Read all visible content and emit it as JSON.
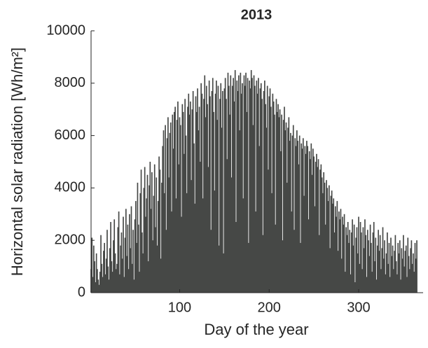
{
  "chart_data": {
    "type": "bar",
    "title": "2013",
    "xlabel": "Day of the year",
    "ylabel": "Horizontal solar radiation [Wh/m²]",
    "color": "#464846",
    "xlim": [
      1,
      372
    ],
    "ylim": [
      0,
      10000
    ],
    "xticks": [
      100,
      200,
      300
    ],
    "yticks": [
      0,
      2000,
      4000,
      6000,
      8000,
      10000
    ],
    "x": [
      1,
      2,
      3,
      4,
      5,
      6,
      7,
      8,
      9,
      10,
      11,
      12,
      13,
      14,
      15,
      16,
      17,
      18,
      19,
      20,
      21,
      22,
      23,
      24,
      25,
      26,
      27,
      28,
      29,
      30,
      31,
      32,
      33,
      34,
      35,
      36,
      37,
      38,
      39,
      40,
      41,
      42,
      43,
      44,
      45,
      46,
      47,
      48,
      49,
      50,
      51,
      52,
      53,
      54,
      55,
      56,
      57,
      58,
      59,
      60,
      61,
      62,
      63,
      64,
      65,
      66,
      67,
      68,
      69,
      70,
      71,
      72,
      73,
      74,
      75,
      76,
      77,
      78,
      79,
      80,
      81,
      82,
      83,
      84,
      85,
      86,
      87,
      88,
      89,
      90,
      91,
      92,
      93,
      94,
      95,
      96,
      97,
      98,
      99,
      100,
      101,
      102,
      103,
      104,
      105,
      106,
      107,
      108,
      109,
      110,
      111,
      112,
      113,
      114,
      115,
      116,
      117,
      118,
      119,
      120,
      121,
      122,
      123,
      124,
      125,
      126,
      127,
      128,
      129,
      130,
      131,
      132,
      133,
      134,
      135,
      136,
      137,
      138,
      139,
      140,
      141,
      142,
      143,
      144,
      145,
      146,
      147,
      148,
      149,
      150,
      151,
      152,
      153,
      154,
      155,
      156,
      157,
      158,
      159,
      160,
      161,
      162,
      163,
      164,
      165,
      166,
      167,
      168,
      169,
      170,
      171,
      172,
      173,
      174,
      175,
      176,
      177,
      178,
      179,
      180,
      181,
      182,
      183,
      184,
      185,
      186,
      187,
      188,
      189,
      190,
      191,
      192,
      193,
      194,
      195,
      196,
      197,
      198,
      199,
      200,
      201,
      202,
      203,
      204,
      205,
      206,
      207,
      208,
      209,
      210,
      211,
      212,
      213,
      214,
      215,
      216,
      217,
      218,
      219,
      220,
      221,
      222,
      223,
      224,
      225,
      226,
      227,
      228,
      229,
      230,
      231,
      232,
      233,
      234,
      235,
      236,
      237,
      238,
      239,
      240,
      241,
      242,
      243,
      244,
      245,
      246,
      247,
      248,
      249,
      250,
      251,
      252,
      253,
      254,
      255,
      256,
      257,
      258,
      259,
      260,
      261,
      262,
      263,
      264,
      265,
      266,
      267,
      268,
      269,
      270,
      271,
      272,
      273,
      274,
      275,
      276,
      277,
      278,
      279,
      280,
      281,
      282,
      283,
      284,
      285,
      286,
      287,
      288,
      289,
      290,
      291,
      292,
      293,
      294,
      295,
      296,
      297,
      298,
      299,
      300,
      301,
      302,
      303,
      304,
      305,
      306,
      307,
      308,
      309,
      310,
      311,
      312,
      313,
      314,
      315,
      316,
      317,
      318,
      319,
      320,
      321,
      322,
      323,
      324,
      325,
      326,
      327,
      328,
      329,
      330,
      331,
      332,
      333,
      334,
      335,
      336,
      337,
      338,
      339,
      340,
      341,
      342,
      343,
      344,
      345,
      346,
      347,
      348,
      349,
      350,
      351,
      352,
      353,
      354,
      355,
      356,
      357,
      358,
      359,
      360,
      361,
      362,
      363,
      364,
      365
    ],
    "values": [
      900,
      2100,
      600,
      1800,
      1200,
      400,
      1500,
      900,
      500,
      300,
      800,
      2200,
      1100,
      600,
      1600,
      1900,
      700,
      1300,
      2400,
      1000,
      500,
      1700,
      2700,
      1200,
      800,
      2000,
      2800,
      1500,
      900,
      1100,
      2500,
      3100,
      700,
      1800,
      2300,
      1300,
      2900,
      600,
      2100,
      3200,
      1400,
      2600,
      900,
      3000,
      1700,
      3300,
      1100,
      2400,
      500,
      2800,
      3500,
      1900,
      4200,
      2600,
      800,
      3800,
      4700,
      2300,
      1500,
      4000,
      4800,
      2900,
      3600,
      4500,
      1200,
      4100,
      5000,
      3200,
      4600,
      2000,
      3700,
      4900,
      2500,
      4400,
      1800,
      3500,
      5200,
      4700,
      1300,
      4200,
      5600,
      6200,
      3800,
      6400,
      2400,
      5900,
      6700,
      4400,
      6100,
      6500,
      3100,
      6800,
      5500,
      6900,
      7100,
      3600,
      6600,
      7300,
      4900,
      6700,
      6400,
      2900,
      7200,
      6900,
      5300,
      7400,
      6000,
      3800,
      7100,
      7600,
      6800,
      7300,
      4300,
      7000,
      7700,
      5700,
      3400,
      7500,
      6900,
      7800,
      6200,
      7100,
      5000,
      8000,
      7600,
      3600,
      7400,
      8300,
      6700,
      7900,
      7200,
      4800,
      8100,
      7500,
      2400,
      7700,
      8200,
      6900,
      3900,
      7600,
      8100,
      6600,
      7900,
      1800,
      7400,
      8000,
      6300,
      7700,
      1500,
      7800,
      8200,
      7400,
      5100,
      8400,
      7900,
      6800,
      8300,
      4400,
      7900,
      8200,
      7300,
      8500,
      2700,
      8100,
      7700,
      8300,
      6200,
      8400,
      7600,
      8000,
      3600,
      8300,
      7900,
      8400,
      6900,
      8200,
      1900,
      8100,
      7800,
      8500,
      8200,
      6400,
      8300,
      7900,
      3100,
      8100,
      7600,
      8200,
      5600,
      7800,
      8000,
      7400,
      2200,
      7700,
      8100,
      7200,
      6300,
      7900,
      4700,
      7500,
      7800,
      7100,
      3800,
      7600,
      7300,
      6800,
      2600,
      7400,
      6900,
      7200,
      6700,
      7000,
      5400,
      6800,
      2000,
      6600,
      7100,
      6200,
      6500,
      4200,
      6300,
      6700,
      5800,
      6100,
      3100,
      6000,
      6400,
      2400,
      5900,
      5600,
      6200,
      5800,
      4900,
      6000,
      1900,
      5700,
      5500,
      5900,
      3700,
      5600,
      5300,
      5800,
      5600,
      2800,
      5400,
      5100,
      5700,
      4500,
      5500,
      5200,
      3300,
      5000,
      5300,
      4800,
      5100,
      2200,
      4700,
      4900,
      4400,
      3800,
      4600,
      4200,
      2600,
      4300,
      4000,
      3500,
      4100,
      1700,
      3700,
      3900,
      3400,
      3600,
      2300,
      3300,
      2900,
      3500,
      1600,
      3100,
      2800,
      3200,
      1300,
      2900,
      2600,
      3000,
      800,
      2500,
      2200,
      2700,
      1900,
      2400,
      700,
      2300,
      2800,
      1800,
      2600,
      400,
      2100,
      2500,
      1500,
      2900,
      1100,
      2700,
      2300,
      900,
      2500,
      1700,
      2800,
      2200,
      600,
      2400,
      2000,
      1400,
      2600,
      1900,
      800,
      2300,
      2700,
      1200,
      2100,
      500,
      1800,
      2400,
      1600,
      2200,
      900,
      1700,
      2500,
      1300,
      2000,
      700,
      1500,
      2300,
      1100,
      1900,
      600,
      2100,
      1400,
      1800,
      900,
      1600,
      2200,
      1200,
      700,
      1900,
      1500,
      2000,
      500,
      1700,
      1300,
      2200,
      1000,
      1600,
      1800,
      600,
      2100,
      1400,
      900,
      1700,
      2000,
      1100,
      1500,
      800,
      1900,
      1300,
      2000
    ]
  }
}
